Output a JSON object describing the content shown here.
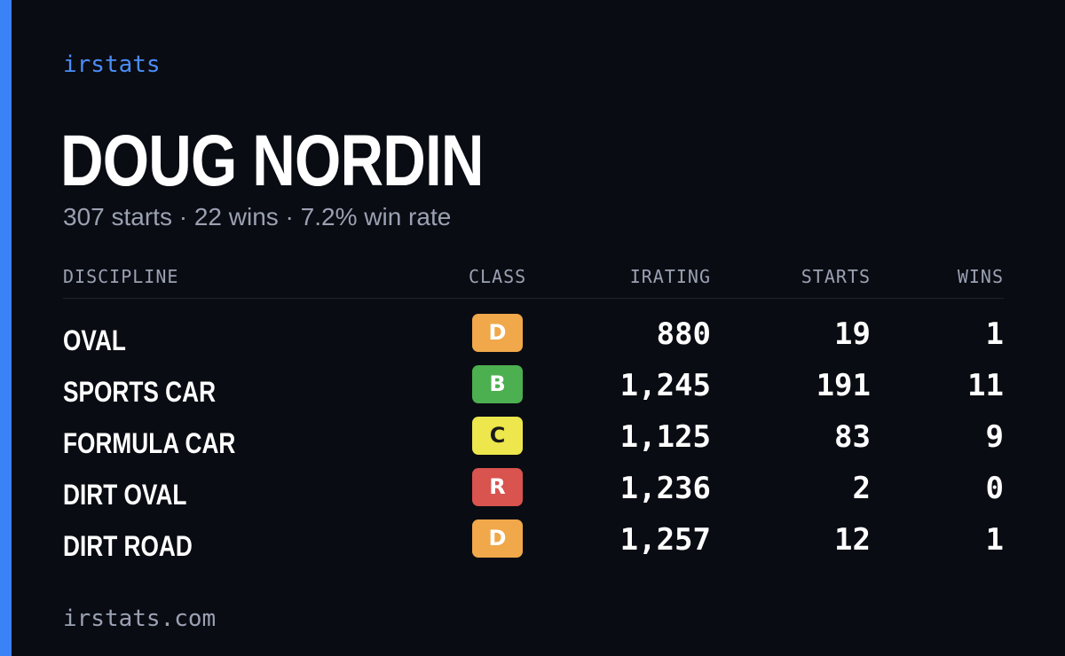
{
  "brand": "irstats",
  "driver": {
    "name": "DOUG NORDIN",
    "summary": "307 starts · 22 wins · 7.2% win rate"
  },
  "table": {
    "headers": {
      "discipline": "DISCIPLINE",
      "class": "CLASS",
      "irating": "IRATING",
      "starts": "STARTS",
      "wins": "WINS"
    },
    "rows": [
      {
        "discipline": "OVAL",
        "class": "D",
        "class_color": "#f0a84a",
        "class_text_color": "#ffffff",
        "irating": "880",
        "starts": "19",
        "wins": "1"
      },
      {
        "discipline": "SPORTS CAR",
        "class": "B",
        "class_color": "#4caf50",
        "class_text_color": "#ffffff",
        "irating": "1,245",
        "starts": "191",
        "wins": "11"
      },
      {
        "discipline": "FORMULA CAR",
        "class": "C",
        "class_color": "#ede64c",
        "class_text_color": "#1a1a1a",
        "irating": "1,125",
        "starts": "83",
        "wins": "9"
      },
      {
        "discipline": "DIRT OVAL",
        "class": "R",
        "class_color": "#d9534f",
        "class_text_color": "#ffffff",
        "irating": "1,236",
        "starts": "2",
        "wins": "0"
      },
      {
        "discipline": "DIRT ROAD",
        "class": "D",
        "class_color": "#f0a84a",
        "class_text_color": "#ffffff",
        "irating": "1,257",
        "starts": "12",
        "wins": "1"
      }
    ]
  },
  "footer": "irstats.com",
  "colors": {
    "background": "#0a0c13",
    "accent": "#3b82f6",
    "muted": "#9aa1b2"
  }
}
